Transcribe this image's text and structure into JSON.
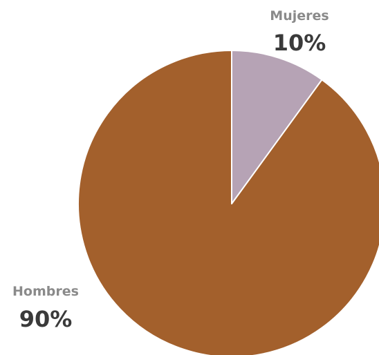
{
  "chart_data": {
    "type": "pie",
    "title": "",
    "start_angle_deg": 0,
    "direction": "clockwise",
    "slices": [
      {
        "label": "Mujeres",
        "value": 10,
        "value_label": "10%",
        "color": "#b6a3b5"
      },
      {
        "label": "Hombres",
        "value": 90,
        "value_label": "90%",
        "color": "#a3602c"
      }
    ],
    "label_color": "#8a8a8a",
    "value_color": "#3a3a3a",
    "separator_color": "#ffffff"
  }
}
